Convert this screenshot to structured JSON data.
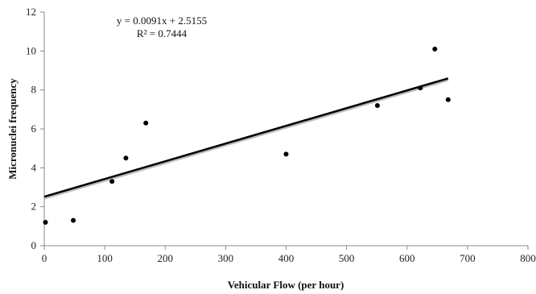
{
  "chart_data": {
    "type": "scatter",
    "title": "",
    "xlabel": "Vehicular Flow (per hour)",
    "ylabel": "Micronuclei frequency",
    "xlim": [
      0,
      800
    ],
    "ylim": [
      0,
      12
    ],
    "x_ticks": [
      "0",
      "100",
      "200",
      "300",
      "400",
      "500",
      "600",
      "700",
      "800"
    ],
    "y_ticks": [
      "0",
      "2",
      "4",
      "6",
      "8",
      "10",
      "12"
    ],
    "grid": false,
    "legend": "none",
    "series": [
      {
        "points": [
          {
            "x": 2,
            "y": 1.2
          },
          {
            "x": 48,
            "y": 1.3
          },
          {
            "x": 112,
            "y": 3.3
          },
          {
            "x": 135,
            "y": 4.5
          },
          {
            "x": 168,
            "y": 6.3
          },
          {
            "x": 400,
            "y": 4.7
          },
          {
            "x": 551,
            "y": 7.2
          },
          {
            "x": 622,
            "y": 8.1
          },
          {
            "x": 646,
            "y": 10.1
          },
          {
            "x": 668,
            "y": 7.5
          }
        ]
      }
    ],
    "trendline": {
      "slope": 0.0091,
      "intercept": 2.5155,
      "x_range": [
        0,
        668
      ],
      "equation": "y = 0.0091x + 2.5155",
      "r_squared": "R² = 0.7444"
    },
    "colors": {
      "points": "#000000",
      "trendline": "#000000",
      "trendline_shadow": "#bbbbbb",
      "axis": "#888888"
    }
  }
}
